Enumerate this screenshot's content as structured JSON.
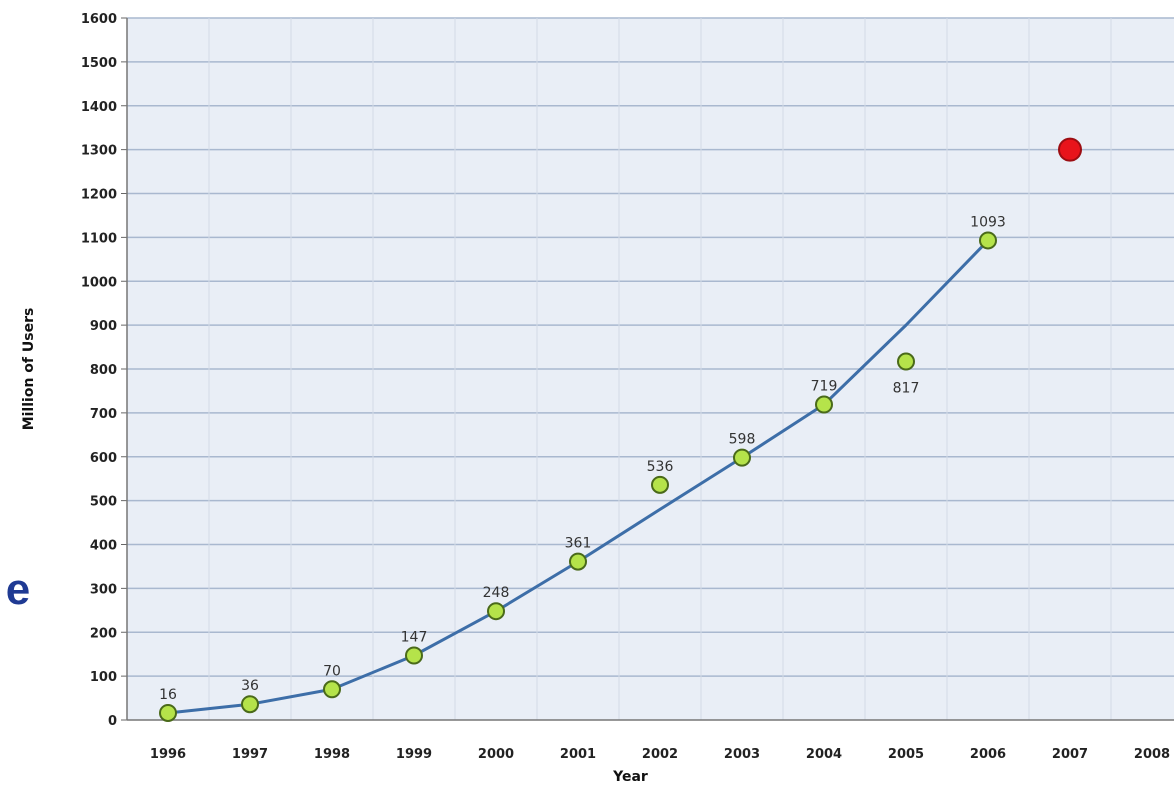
{
  "side_text": "e",
  "chart_data": {
    "type": "line",
    "xlabel": "Year",
    "ylabel": "Million of Users",
    "ylim": [
      0,
      1600
    ],
    "y_ticks": [
      0,
      100,
      200,
      300,
      400,
      500,
      600,
      700,
      800,
      900,
      1000,
      1100,
      1200,
      1300,
      1400,
      1500,
      1600
    ],
    "categories": [
      "1996",
      "1997",
      "1998",
      "1999",
      "2000",
      "2001",
      "2002",
      "2003",
      "2004",
      "2005",
      "2006",
      "2007",
      "2008"
    ],
    "grid": true,
    "points": [
      {
        "x": "1996",
        "y": 16,
        "label": "16"
      },
      {
        "x": "1997",
        "y": 36,
        "label": "36"
      },
      {
        "x": "1998",
        "y": 70,
        "label": "70"
      },
      {
        "x": "1999",
        "y": 147,
        "label": "147"
      },
      {
        "x": "2000",
        "y": 248,
        "label": "248"
      },
      {
        "x": "2001",
        "y": 361,
        "label": "361"
      },
      {
        "x": "2002",
        "y": 536,
        "label": "536"
      },
      {
        "x": "2003",
        "y": 598,
        "label": "598"
      },
      {
        "x": "2004",
        "y": 719,
        "label": "719"
      },
      {
        "x": "2005",
        "y": 817,
        "label": "817"
      },
      {
        "x": "2006",
        "y": 1093,
        "label": "1093"
      }
    ],
    "trend_line": [
      {
        "x": "1996",
        "y": 16
      },
      {
        "x": "1997",
        "y": 36
      },
      {
        "x": "1998",
        "y": 70
      },
      {
        "x": "1999",
        "y": 147
      },
      {
        "x": "2000",
        "y": 248
      },
      {
        "x": "2001",
        "y": 361
      },
      {
        "x": "2002",
        "y": 480
      },
      {
        "x": "2003",
        "y": 598
      },
      {
        "x": "2004",
        "y": 719
      },
      {
        "x": "2005",
        "y": 900
      },
      {
        "x": "2006",
        "y": 1093
      }
    ],
    "highlight_point": {
      "x": "2007",
      "y": 1300
    },
    "colors": {
      "plot_background": "#e9eef6",
      "gridline": "#a9b8cf",
      "line": "#3d6ea8",
      "marker_fill": "#b5e34a",
      "marker_stroke": "#4a6a1a",
      "highlight": "#e8141b"
    }
  }
}
